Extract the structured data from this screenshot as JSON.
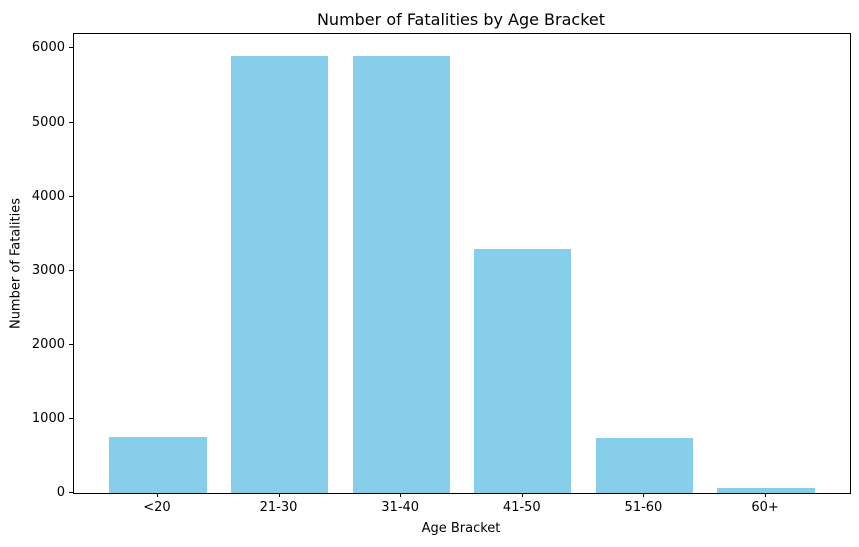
{
  "chart_data": {
    "type": "bar",
    "title": "Number of Fatalities by Age Bracket",
    "xlabel": "Age Bracket",
    "ylabel": "Number of Fatalities",
    "categories": [
      "<20",
      "21-30",
      "31-40",
      "41-50",
      "51-60",
      "60+"
    ],
    "values": [
      750,
      5900,
      5900,
      3300,
      740,
      70
    ],
    "bar_color": "#87CEEB",
    "bar_width_fraction": 0.8,
    "ylim": [
      0,
      6195
    ],
    "yticks": [
      0,
      1000,
      2000,
      3000,
      4000,
      5000,
      6000
    ],
    "grid": false,
    "legend": "none",
    "plot_background": "#ffffff",
    "axis_color": "#000000"
  }
}
